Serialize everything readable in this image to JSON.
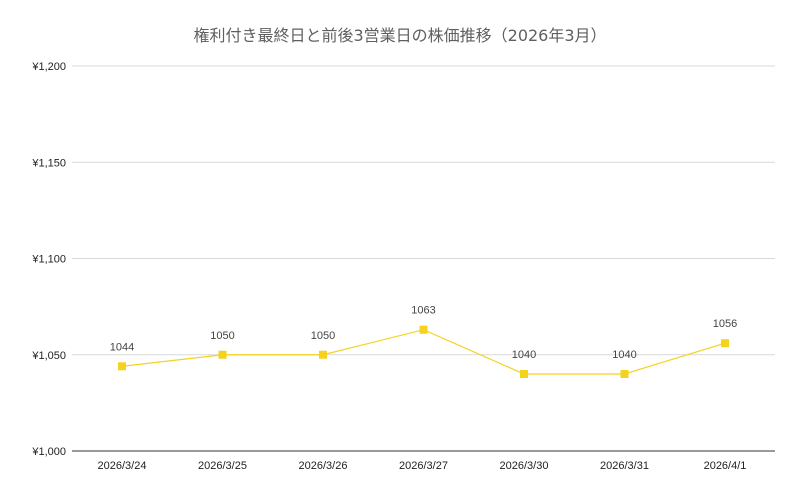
{
  "chart_data": {
    "type": "line",
    "title": "権利付き最終日と前後3営業日の株価推移（2026年3月）",
    "categories": [
      "2026/3/24",
      "2026/3/25",
      "2026/3/26",
      "2026/3/27",
      "2026/3/30",
      "2026/3/31",
      "2026/4/1"
    ],
    "series": [
      {
        "values": [
          1044,
          1050,
          1050,
          1063,
          1040,
          1040,
          1056
        ]
      }
    ],
    "data_labels": [
      "1044",
      "1050",
      "1050",
      "1063",
      "1040",
      "1040",
      "1056"
    ],
    "ylim": [
      1000,
      1200
    ],
    "yticks": [
      1000,
      1050,
      1100,
      1150,
      1200
    ],
    "ytick_labels": [
      "¥1,000",
      "¥1,050",
      "¥1,100",
      "¥1,150",
      "¥1,200"
    ],
    "grid": true,
    "series_color": "#F5D21E",
    "marker": "square"
  }
}
